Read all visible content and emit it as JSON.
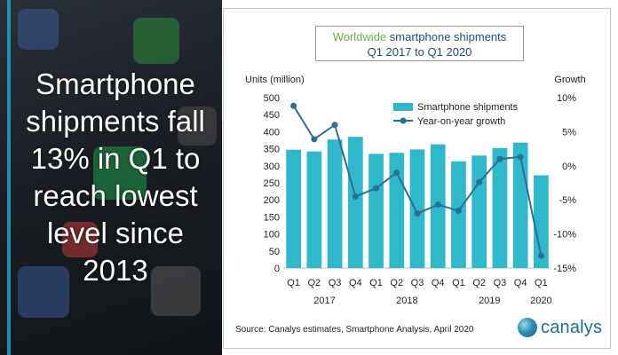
{
  "headline": {
    "lines": [
      "Smartphone",
      "shipments fall",
      "13% in Q1 to",
      "reach lowest",
      "level since",
      "2013"
    ]
  },
  "chart_title": {
    "accent_word": "Worldwide",
    "line1_rest": " smartphone shipments",
    "line2_start": "Q1 2017",
    "line2_mid": " to ",
    "line2_end": "Q1 2020"
  },
  "source_note": "Source: Canalys estimates, Smartphone Analysis, April 2020",
  "brand": {
    "name": "canalys"
  },
  "colors": {
    "bar": "#2eb8c9",
    "line": "#2a6f97",
    "title_text": "#1f4e79",
    "title_accent": "#70ad47"
  },
  "chart_data": {
    "type": "bar",
    "title": "Worldwide smartphone shipments Q1 2017 to Q1 2020",
    "categories": [
      "Q1",
      "Q2",
      "Q3",
      "Q4",
      "Q1",
      "Q2",
      "Q3",
      "Q4",
      "Q1",
      "Q2",
      "Q3",
      "Q4",
      "Q1"
    ],
    "year_labels": [
      {
        "label": "2017",
        "start": 0,
        "end": 3
      },
      {
        "label": "2018",
        "start": 4,
        "end": 7
      },
      {
        "label": "2019",
        "start": 8,
        "end": 11
      },
      {
        "label": "2020",
        "start": 12,
        "end": 12
      }
    ],
    "left_axis": {
      "label": "Units (million)",
      "min": 0,
      "max": 500,
      "ticks": [
        0,
        50,
        100,
        150,
        200,
        250,
        300,
        350,
        400,
        450,
        500
      ]
    },
    "right_axis": {
      "label": "Growth",
      "min": -15,
      "max": 10,
      "ticks": [
        -15,
        -10,
        -5,
        0,
        5,
        10
      ],
      "tick_labels": [
        "-15%",
        "-10%",
        "-5%",
        "0%",
        "5%",
        "10%"
      ]
    },
    "series": [
      {
        "name": "Smartphone shipments",
        "type": "bar",
        "axis": "left",
        "values": [
          347,
          342,
          377,
          385,
          335,
          338,
          348,
          363,
          313,
          330,
          352,
          368,
          272
        ]
      },
      {
        "name": "Year-on-year growth",
        "type": "line",
        "axis": "right",
        "values": [
          8.8,
          3.9,
          6.0,
          -4.5,
          -3.3,
          -1.0,
          -7.0,
          -5.7,
          -6.6,
          -2.4,
          1.0,
          1.3,
          -13.2
        ]
      }
    ],
    "legend_position": "top-right",
    "grid": false
  }
}
